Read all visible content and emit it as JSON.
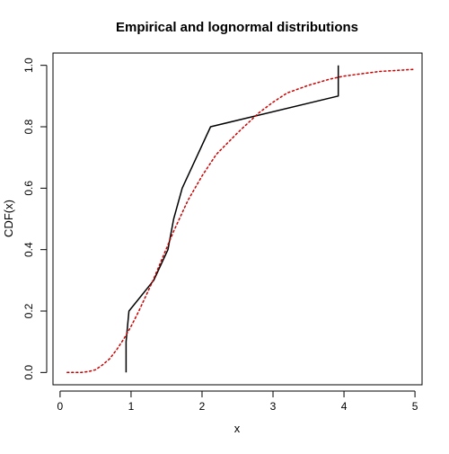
{
  "chart_data": {
    "type": "line",
    "title": "Empirical and lognormal distributions",
    "xlabel": "x",
    "ylabel": "CDF(x)",
    "xlim": [
      -0.1,
      5.1
    ],
    "ylim": [
      -0.04,
      1.04
    ],
    "x_ticks": [
      0,
      1,
      2,
      3,
      4,
      5
    ],
    "y_ticks": [
      0.0,
      0.2,
      0.4,
      0.6,
      0.8,
      1.0
    ],
    "x_tick_labels": [
      "0",
      "1",
      "2",
      "3",
      "4",
      "5"
    ],
    "y_tick_labels": [
      "0.0",
      "0.2",
      "0.4",
      "0.6",
      "0.8",
      "1.0"
    ],
    "grid": false,
    "series": [
      {
        "style": "solid",
        "color": "#000000",
        "points": [
          [
            0.93,
            0.0
          ],
          [
            0.93,
            0.1
          ],
          [
            0.97,
            0.2
          ],
          [
            1.32,
            0.3
          ],
          [
            1.52,
            0.4
          ],
          [
            1.6,
            0.5
          ],
          [
            1.72,
            0.6
          ],
          [
            1.92,
            0.7
          ],
          [
            2.12,
            0.8
          ],
          [
            3.92,
            0.9
          ],
          [
            3.92,
            1.0
          ]
        ]
      },
      {
        "style": "dotted",
        "color": "#cc0000",
        "points": [
          [
            0.1,
            0.0
          ],
          [
            0.3,
            0.0
          ],
          [
            0.4,
            0.003
          ],
          [
            0.5,
            0.009
          ],
          [
            0.6,
            0.025
          ],
          [
            0.7,
            0.045
          ],
          [
            0.8,
            0.075
          ],
          [
            0.9,
            0.11
          ],
          [
            1.0,
            0.15
          ],
          [
            1.1,
            0.195
          ],
          [
            1.2,
            0.245
          ],
          [
            1.3,
            0.295
          ],
          [
            1.4,
            0.35
          ],
          [
            1.5,
            0.405
          ],
          [
            1.6,
            0.46
          ],
          [
            1.8,
            0.56
          ],
          [
            2.0,
            0.64
          ],
          [
            2.2,
            0.71
          ],
          [
            2.5,
            0.78
          ],
          [
            2.8,
            0.845
          ],
          [
            3.0,
            0.88
          ],
          [
            3.2,
            0.91
          ],
          [
            3.5,
            0.935
          ],
          [
            3.8,
            0.955
          ],
          [
            4.0,
            0.965
          ],
          [
            4.5,
            0.98
          ],
          [
            5.0,
            0.987
          ]
        ]
      }
    ]
  }
}
